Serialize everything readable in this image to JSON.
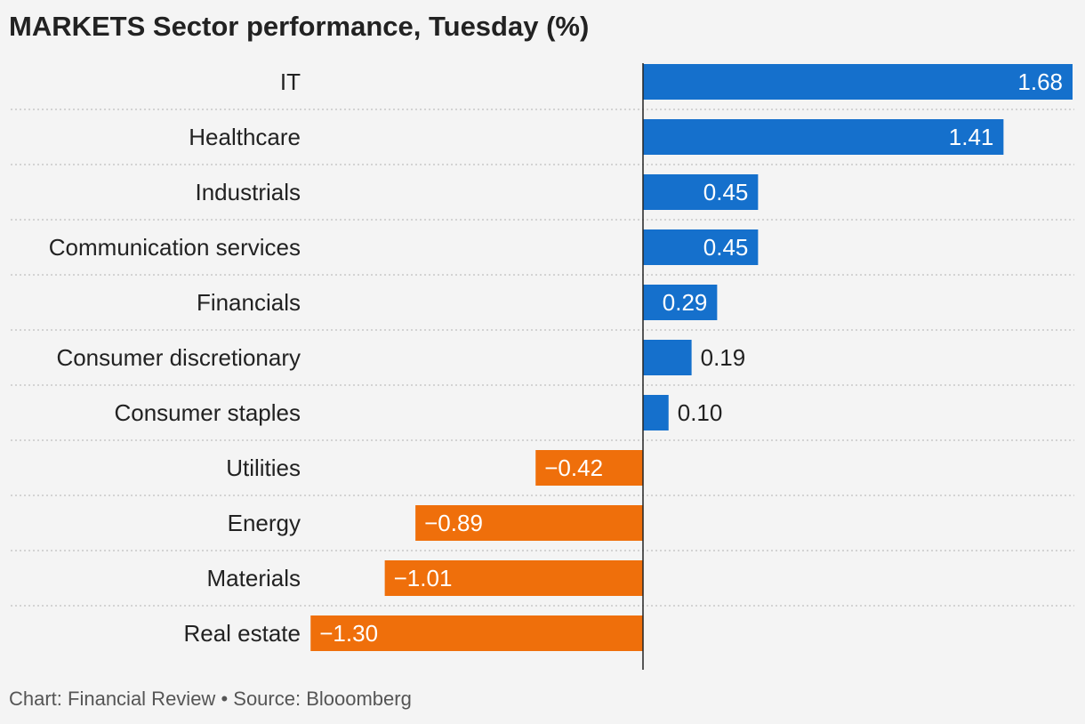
{
  "title": "MARKETS Sector performance, Tuesday (%)",
  "footer": {
    "credit": "Chart: Financial Review",
    "separator": "•",
    "source": "Source: Blooomberg"
  },
  "colors": {
    "positive": "#1570cc",
    "negative": "#ef6f0b",
    "background": "#f4f4f4",
    "gridline": "#c8c8c8",
    "axis": "#222222"
  },
  "chart_data": {
    "type": "bar",
    "orientation": "horizontal",
    "title": "MARKETS Sector performance, Tuesday (%)",
    "categories": [
      "IT",
      "Healthcare",
      "Industrials",
      "Communication services",
      "Financials",
      "Consumer discretionary",
      "Consumer staples",
      "Utilities",
      "Energy",
      "Materials",
      "Real estate"
    ],
    "values": [
      1.68,
      1.41,
      0.45,
      0.45,
      0.29,
      0.19,
      0.1,
      -0.42,
      -0.89,
      -1.01,
      -1.3
    ],
    "value_labels": [
      "1.68",
      "1.41",
      "0.45",
      "0.45",
      "0.29",
      "0.19",
      "0.10",
      "−0.42",
      "−0.89",
      "−1.01",
      "−1.30"
    ],
    "xlim": [
      -1.3,
      1.68
    ],
    "xlabel": "",
    "ylabel": "",
    "grid": "dotted row separators",
    "legend": "none"
  }
}
